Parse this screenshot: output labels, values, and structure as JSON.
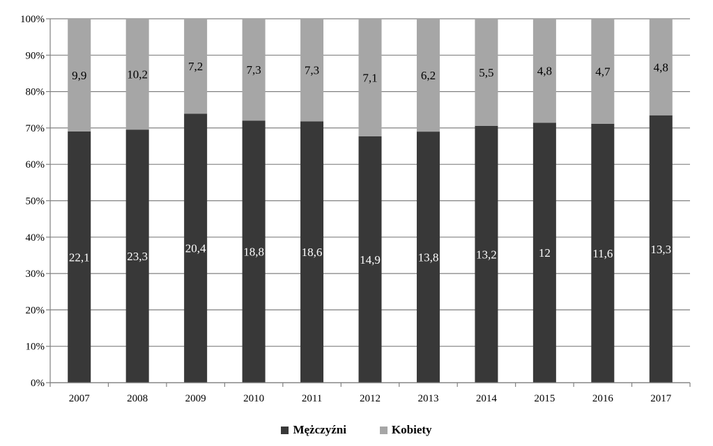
{
  "chart_data": {
    "type": "bar",
    "stacked": true,
    "normalized": true,
    "categories": [
      "2007",
      "2008",
      "2009",
      "2010",
      "2011",
      "2012",
      "2013",
      "2014",
      "2015",
      "2016",
      "2017"
    ],
    "series": [
      {
        "name": "Mężczyźni",
        "color": "#383838",
        "values": [
          22.1,
          23.3,
          20.4,
          18.8,
          18.6,
          14.9,
          13.8,
          13.2,
          12,
          11.6,
          13.3
        ],
        "labels": [
          "22,1",
          "23,3",
          "20,4",
          "18,8",
          "18,6",
          "14,9",
          "13,8",
          "13,2",
          "12",
          "11,6",
          "13,3"
        ]
      },
      {
        "name": "Kobiety",
        "color": "#a6a6a6",
        "values": [
          9.9,
          10.2,
          7.2,
          7.3,
          7.3,
          7.1,
          6.2,
          5.5,
          4.8,
          4.7,
          4.8
        ],
        "labels": [
          "9,9",
          "10,2",
          "7,2",
          "7,3",
          "7,3",
          "7,1",
          "6,2",
          "5,5",
          "4,8",
          "4,7",
          "4,8"
        ]
      }
    ],
    "y_ticks": [
      "0%",
      "10%",
      "20%",
      "30%",
      "40%",
      "50%",
      "60%",
      "70%",
      "80%",
      "90%",
      "100%"
    ],
    "ylim": [
      0,
      100
    ],
    "grid": true,
    "legend_position": "bottom"
  }
}
